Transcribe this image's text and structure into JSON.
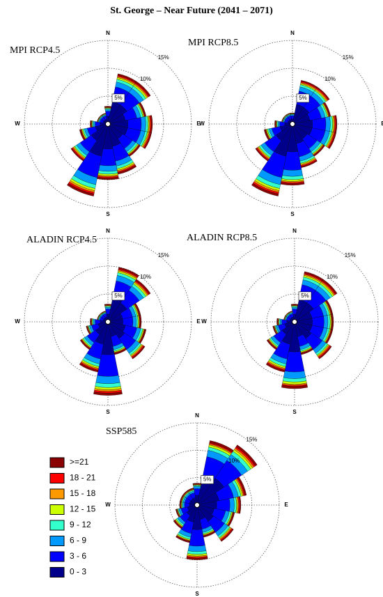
{
  "title": "St. George – Near Future (2041 – 2071)",
  "legend": [
    {
      "name": ">=21",
      "color": "#8b0000"
    },
    {
      "name": "18 - 21",
      "color": "#ff0000"
    },
    {
      "name": "15 - 18",
      "color": "#ff9900"
    },
    {
      "name": "12 - 15",
      "color": "#ccff00"
    },
    {
      "name": "9 - 12",
      "color": "#33ffcc"
    },
    {
      "name": "6 - 9",
      "color": "#0099ff"
    },
    {
      "name": "3 - 6",
      "color": "#0000ff"
    },
    {
      "name": "0 - 3",
      "color": "#00008b"
    }
  ],
  "chart_data": [
    {
      "type": "windrose",
      "title": "MPI RCP4.5",
      "categories": [
        "N",
        null,
        null,
        null,
        "E",
        null,
        null,
        null,
        "S",
        null,
        null,
        null,
        "W",
        null,
        null,
        null
      ],
      "ylim": [
        0,
        15
      ],
      "yticks": [
        {
          "value": 5,
          "label": "5%"
        },
        {
          "value": 10,
          "label": "10%"
        },
        {
          "value": 15,
          "label": "15%"
        }
      ],
      "series": [
        {
          "values": [
            0.1,
            0.3,
            0.3,
            0.2,
            0.2,
            0.2,
            0.2,
            0.3,
            0.3,
            0.4,
            0.2,
            0.2,
            0.1,
            0.1,
            0.1,
            0.1
          ]
        },
        {
          "values": [
            0.1,
            0.2,
            0.2,
            0.1,
            0.2,
            0.2,
            0.1,
            0.2,
            0.2,
            0.3,
            0.2,
            0.1,
            0.1,
            0,
            0,
            0
          ]
        },
        {
          "values": [
            0.1,
            0.2,
            0.2,
            0.1,
            0.2,
            0.2,
            0.1,
            0.2,
            0.2,
            0.3,
            0.2,
            0.1,
            0.1,
            0,
            0,
            0
          ]
        },
        {
          "values": [
            0.1,
            0.3,
            0.3,
            0.2,
            0.2,
            0.2,
            0.2,
            0.3,
            0.3,
            0.4,
            0.2,
            0.2,
            0.1,
            0.1,
            0.1,
            0.1
          ]
        },
        {
          "values": [
            0.2,
            0.5,
            0.5,
            0.4,
            0.4,
            0.4,
            0.4,
            0.5,
            0.5,
            0.7,
            0.4,
            0.3,
            0.2,
            0.1,
            0.1,
            0.1
          ]
        },
        {
          "values": [
            0.3,
            0.9,
            0.9,
            0.7,
            0.8,
            0.8,
            0.7,
            0.9,
            1,
            1.3,
            0.8,
            0.5,
            0.3,
            0.2,
            0.2,
            0.2
          ]
        },
        {
          "values": [
            0.9,
            2.7,
            2.7,
            2.1,
            2.4,
            2.4,
            2.1,
            2.7,
            3,
            3.9,
            2.4,
            1.5,
            0.9,
            0.6,
            0.6,
            0.6
          ]
        },
        {
          "values": [
            1.4,
            4.1,
            4.1,
            3.2,
            3.6,
            3.6,
            3.2,
            4.1,
            4.5,
            5.9,
            3.6,
            2.3,
            1.4,
            0.9,
            0.9,
            0.9
          ]
        }
      ]
    },
    {
      "type": "windrose",
      "title": "MPI RCP8.5",
      "categories": [
        "N",
        null,
        null,
        null,
        "E",
        null,
        null,
        null,
        "S",
        null,
        null,
        null,
        "W",
        null,
        null,
        null
      ],
      "ylim": [
        0,
        15
      ],
      "yticks": [
        {
          "value": 5,
          "label": "5%"
        },
        {
          "value": 10,
          "label": "10%"
        },
        {
          "value": 15,
          "label": "15%"
        }
      ],
      "series": [
        {
          "values": [
            0.1,
            0.2,
            0.2,
            0.2,
            0.2,
            0.2,
            0.2,
            0.2,
            0.3,
            0.4,
            0.2,
            0.2,
            0.1,
            0.1,
            0.1,
            0.1
          ]
        },
        {
          "values": [
            0,
            0.2,
            0.2,
            0.1,
            0.2,
            0.2,
            0.1,
            0.2,
            0.2,
            0.3,
            0.2,
            0.1,
            0.1,
            0,
            0,
            0
          ]
        },
        {
          "values": [
            0,
            0.2,
            0.2,
            0.1,
            0.2,
            0.2,
            0.1,
            0.2,
            0.2,
            0.3,
            0.2,
            0.1,
            0.1,
            0,
            0,
            0
          ]
        },
        {
          "values": [
            0.1,
            0.2,
            0.2,
            0.2,
            0.2,
            0.2,
            0.2,
            0.2,
            0.3,
            0.4,
            0.2,
            0.2,
            0.1,
            0.1,
            0.1,
            0.1
          ]
        },
        {
          "values": [
            0.1,
            0.4,
            0.4,
            0.4,
            0.4,
            0.4,
            0.4,
            0.4,
            0.6,
            0.7,
            0.4,
            0.3,
            0.2,
            0.1,
            0.1,
            0.1
          ]
        },
        {
          "values": [
            0.2,
            0.8,
            0.8,
            0.7,
            0.8,
            0.8,
            0.7,
            0.8,
            1.1,
            1.3,
            0.8,
            0.5,
            0.3,
            0.2,
            0.2,
            0.2
          ]
        },
        {
          "values": [
            0.6,
            2.4,
            2.4,
            2.1,
            2.4,
            2.4,
            2.1,
            2.4,
            3.3,
            3.9,
            2.4,
            1.5,
            0.9,
            0.6,
            0.6,
            0.6
          ]
        },
        {
          "values": [
            0.9,
            3.6,
            3.6,
            3.2,
            3.6,
            3.6,
            3.2,
            3.6,
            5,
            5.9,
            3.6,
            2.3,
            1.4,
            0.9,
            0.9,
            0.9
          ]
        }
      ]
    },
    {
      "type": "windrose",
      "title": "ALADIN RCP4.5",
      "categories": [
        "N",
        null,
        null,
        null,
        "E",
        null,
        null,
        null,
        "S",
        null,
        null,
        null,
        "W",
        null,
        null,
        null
      ],
      "ylim": [
        0,
        15
      ],
      "yticks": [
        {
          "value": 5,
          "label": "5%"
        },
        {
          "value": 10,
          "label": "10%"
        },
        {
          "value": 15,
          "label": "15%"
        }
      ],
      "series": [
        {
          "values": [
            0.1,
            0.3,
            0.3,
            0.2,
            0.2,
            0.2,
            0.2,
            0.2,
            0.4,
            0.3,
            0.2,
            0.1,
            0.1,
            0.1,
            0.1,
            0.1
          ]
        },
        {
          "values": [
            0.1,
            0.2,
            0.2,
            0.1,
            0.1,
            0.1,
            0.2,
            0.1,
            0.3,
            0.2,
            0.1,
            0.1,
            0.1,
            0,
            0,
            0
          ]
        },
        {
          "values": [
            0.1,
            0.2,
            0.2,
            0.1,
            0.1,
            0.1,
            0.2,
            0.1,
            0.3,
            0.2,
            0.1,
            0.1,
            0.1,
            0,
            0,
            0
          ]
        },
        {
          "values": [
            0.1,
            0.3,
            0.3,
            0.2,
            0.2,
            0.2,
            0.2,
            0.2,
            0.4,
            0.3,
            0.2,
            0.1,
            0.1,
            0.1,
            0.1,
            0.1
          ]
        },
        {
          "values": [
            0.2,
            0.5,
            0.5,
            0.3,
            0.3,
            0.4,
            0.4,
            0.3,
            0.7,
            0.5,
            0.3,
            0.2,
            0.2,
            0.1,
            0.1,
            0.1
          ]
        },
        {
          "values": [
            0.3,
            1,
            0.9,
            0.6,
            0.6,
            0.7,
            0.8,
            0.6,
            1.3,
            0.9,
            0.6,
            0.4,
            0.3,
            0.2,
            0.2,
            0.2
          ]
        },
        {
          "values": [
            0.9,
            3,
            2.7,
            1.8,
            1.8,
            2.1,
            2.4,
            1.8,
            3.9,
            2.7,
            1.8,
            1.2,
            0.9,
            0.6,
            0.6,
            0.6
          ]
        },
        {
          "values": [
            1.4,
            4.5,
            4.1,
            2.7,
            2.7,
            3.2,
            3.6,
            2.7,
            5.9,
            4.1,
            2.7,
            1.8,
            1.4,
            0.9,
            0.9,
            0.9
          ]
        }
      ]
    },
    {
      "type": "windrose",
      "title": "ALADIN RCP8.5",
      "categories": [
        "N",
        null,
        null,
        null,
        "E",
        null,
        null,
        null,
        "S",
        null,
        null,
        null,
        "W",
        null,
        null,
        null
      ],
      "ylim": [
        0,
        15
      ],
      "yticks": [
        {
          "value": 5,
          "label": "5%"
        },
        {
          "value": 10,
          "label": "10%"
        },
        {
          "value": 15,
          "label": "15%"
        }
      ],
      "series": [
        {
          "values": [
            0.1,
            0.3,
            0.3,
            0.2,
            0.2,
            0.2,
            0.2,
            0.2,
            0.4,
            0.3,
            0.2,
            0.1,
            0.1,
            0.1,
            0.1,
            0.1
          ]
        },
        {
          "values": [
            0.1,
            0.2,
            0.2,
            0.1,
            0.1,
            0.1,
            0.2,
            0.1,
            0.2,
            0.2,
            0.1,
            0.1,
            0.1,
            0,
            0,
            0
          ]
        },
        {
          "values": [
            0.1,
            0.2,
            0.2,
            0.1,
            0.1,
            0.1,
            0.2,
            0.1,
            0.2,
            0.2,
            0.1,
            0.1,
            0.1,
            0,
            0,
            0
          ]
        },
        {
          "values": [
            0.1,
            0.3,
            0.3,
            0.2,
            0.2,
            0.2,
            0.2,
            0.2,
            0.4,
            0.3,
            0.2,
            0.1,
            0.1,
            0.1,
            0.1,
            0.1
          ]
        },
        {
          "values": [
            0.2,
            0.5,
            0.5,
            0.4,
            0.4,
            0.4,
            0.4,
            0.3,
            0.6,
            0.5,
            0.3,
            0.2,
            0.2,
            0.1,
            0.1,
            0.1
          ]
        },
        {
          "values": [
            0.3,
            0.9,
            0.9,
            0.7,
            0.7,
            0.7,
            0.8,
            0.6,
            1.2,
            0.9,
            0.6,
            0.4,
            0.3,
            0.2,
            0.2,
            0.2
          ]
        },
        {
          "values": [
            0.9,
            2.7,
            2.7,
            2.1,
            2.1,
            2.1,
            2.4,
            1.8,
            3.6,
            2.7,
            1.8,
            1.2,
            0.9,
            0.6,
            0.6,
            0.6
          ]
        },
        {
          "values": [
            1.4,
            4.1,
            4.1,
            3.2,
            3.2,
            3.2,
            3.6,
            2.7,
            5.4,
            4.1,
            2.7,
            1.8,
            1.4,
            0.9,
            0.9,
            0.9
          ]
        }
      ]
    },
    {
      "type": "windrose",
      "title": "SSP585",
      "categories": [
        "N",
        null,
        null,
        null,
        "E",
        null,
        null,
        null,
        "S",
        null,
        null,
        null,
        "W",
        null,
        null,
        null
      ],
      "ylim": [
        0,
        15
      ],
      "yticks": [
        {
          "value": 5,
          "label": "5%"
        },
        {
          "value": 10,
          "label": "10%"
        },
        {
          "value": 15,
          "label": "15%"
        }
      ],
      "series": [
        {
          "values": [
            0.1,
            0.4,
            0.4,
            0.3,
            0.2,
            0.2,
            0.2,
            0.2,
            0.3,
            0.2,
            0.2,
            0.1,
            0.1,
            0.1,
            0.1,
            0.1
          ]
        },
        {
          "values": [
            0.1,
            0.2,
            0.3,
            0.2,
            0.2,
            0.1,
            0.2,
            0.1,
            0.2,
            0.1,
            0.1,
            0.1,
            0.1,
            0.1,
            0.1,
            0.1
          ]
        },
        {
          "values": [
            0.1,
            0.2,
            0.3,
            0.2,
            0.2,
            0.1,
            0.2,
            0.1,
            0.2,
            0.1,
            0.1,
            0.1,
            0.1,
            0.1,
            0.1,
            0.1
          ]
        },
        {
          "values": [
            0.1,
            0.4,
            0.4,
            0.3,
            0.2,
            0.2,
            0.2,
            0.2,
            0.3,
            0.2,
            0.2,
            0.1,
            0.1,
            0.1,
            0.1,
            0.1
          ]
        },
        {
          "values": [
            0.2,
            0.6,
            0.7,
            0.5,
            0.4,
            0.4,
            0.4,
            0.3,
            0.5,
            0.4,
            0.3,
            0.2,
            0.2,
            0.2,
            0.2,
            0.2
          ]
        },
        {
          "values": [
            0.4,
            1.2,
            1.3,
            0.9,
            0.8,
            0.7,
            0.8,
            0.6,
            1,
            0.7,
            0.5,
            0.4,
            0.3,
            0.3,
            0.3,
            0.3
          ]
        },
        {
          "values": [
            1.2,
            3.6,
            3.9,
            2.7,
            2.4,
            2.1,
            2.4,
            1.8,
            3,
            2.1,
            1.5,
            1.2,
            0.9,
            0.9,
            0.9,
            0.9
          ]
        },
        {
          "values": [
            1.8,
            5.4,
            5.9,
            4.1,
            3.6,
            3.2,
            3.6,
            2.7,
            4.5,
            3.2,
            2.3,
            1.8,
            1.4,
            1.4,
            1.4,
            1.4
          ]
        }
      ]
    }
  ]
}
